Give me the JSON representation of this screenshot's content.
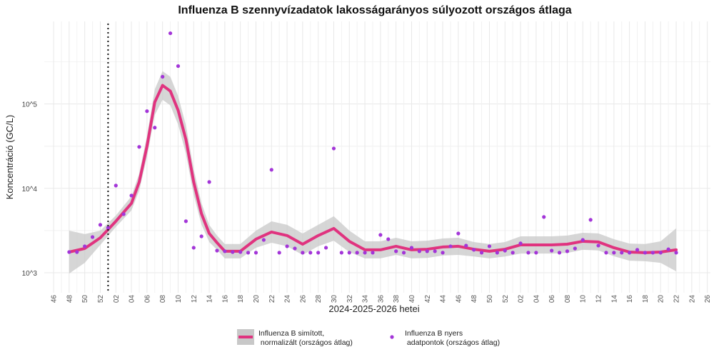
{
  "chart_data": {
    "type": "line",
    "title": "Influenza B szennyvízadatok lakosságarányos súlyozott országos átlaga",
    "x_label": "2024-2025-2026 hetei",
    "y_label": "Koncentráció (GC/L)",
    "log_y": true,
    "grid": true,
    "legend": "bottom",
    "xlim": [
      -1.2,
      84.4
    ],
    "ylim": [
      580,
      950000
    ],
    "yticks": [
      {
        "value": 1000,
        "label": "10^3"
      },
      {
        "value": 10000,
        "label": "10^4"
      },
      {
        "value": 100000,
        "label": "10^5"
      }
    ],
    "xticks": [
      {
        "value": 0,
        "label": "46"
      },
      {
        "value": 2,
        "label": "48"
      },
      {
        "value": 4,
        "label": "50"
      },
      {
        "value": 6,
        "label": "52"
      },
      {
        "value": 8,
        "label": "02"
      },
      {
        "value": 10,
        "label": "04"
      },
      {
        "value": 12,
        "label": "06"
      },
      {
        "value": 14,
        "label": "08"
      },
      {
        "value": 16,
        "label": "10"
      },
      {
        "value": 18,
        "label": "12"
      },
      {
        "value": 20,
        "label": "14"
      },
      {
        "value": 22,
        "label": "16"
      },
      {
        "value": 24,
        "label": "18"
      },
      {
        "value": 26,
        "label": "20"
      },
      {
        "value": 28,
        "label": "22"
      },
      {
        "value": 30,
        "label": "24"
      },
      {
        "value": 32,
        "label": "26"
      },
      {
        "value": 34,
        "label": "28"
      },
      {
        "value": 36,
        "label": "30"
      },
      {
        "value": 38,
        "label": "32"
      },
      {
        "value": 40,
        "label": "34"
      },
      {
        "value": 42,
        "label": "36"
      },
      {
        "value": 44,
        "label": "38"
      },
      {
        "value": 46,
        "label": "40"
      },
      {
        "value": 48,
        "label": "42"
      },
      {
        "value": 50,
        "label": "44"
      },
      {
        "value": 52,
        "label": "46"
      },
      {
        "value": 54,
        "label": "48"
      },
      {
        "value": 56,
        "label": "50"
      },
      {
        "value": 58,
        "label": "52"
      },
      {
        "value": 60,
        "label": "02"
      },
      {
        "value": 62,
        "label": "04"
      },
      {
        "value": 64,
        "label": "06"
      },
      {
        "value": 66,
        "label": "08"
      },
      {
        "value": 68,
        "label": "10"
      },
      {
        "value": 70,
        "label": "12"
      },
      {
        "value": 72,
        "label": "14"
      },
      {
        "value": 74,
        "label": "16"
      },
      {
        "value": 76,
        "label": "18"
      },
      {
        "value": 78,
        "label": "20"
      },
      {
        "value": 80,
        "label": "22"
      },
      {
        "value": 82,
        "label": "24"
      },
      {
        "value": 84,
        "label": "26"
      }
    ],
    "vline_x": 7,
    "series": [
      {
        "name": "Influenza B simított,\n normalizált (országos átlag)",
        "type": "line",
        "color": "#e0337f",
        "band_color": "#c8c8c8",
        "x": [
          2,
          4,
          6,
          8,
          10,
          11,
          12,
          13,
          14,
          15,
          16,
          17,
          18,
          19,
          20,
          21,
          22,
          24,
          26,
          28,
          30,
          32,
          34,
          36,
          38,
          40,
          42,
          44,
          46,
          48,
          50,
          52,
          54,
          56,
          58,
          60,
          62,
          64,
          66,
          68,
          70,
          72,
          74,
          76,
          78,
          80
        ],
        "values": [
          1760,
          1940,
          2600,
          4080,
          6640,
          11900,
          31600,
          105000,
          166000,
          142000,
          84000,
          38000,
          11900,
          5000,
          2920,
          2270,
          1800,
          1800,
          2500,
          3040,
          2760,
          2180,
          2760,
          3350,
          2360,
          1870,
          1870,
          2060,
          1870,
          1900,
          2020,
          2060,
          1900,
          1800,
          1900,
          2140,
          2140,
          2140,
          2180,
          2360,
          2320,
          1980,
          1760,
          1730,
          1760,
          1870
        ],
        "upper": [
          3160,
          2870,
          3160,
          4770,
          8070,
          15000,
          42300,
          149000,
          245000,
          210000,
          124000,
          56100,
          16900,
          6700,
          3690,
          2760,
          2190,
          2190,
          3160,
          4070,
          3700,
          2920,
          3700,
          4670,
          3160,
          2360,
          2360,
          2600,
          2360,
          2400,
          2550,
          2600,
          2310,
          2190,
          2310,
          2700,
          2700,
          2700,
          2760,
          2980,
          2930,
          2500,
          2220,
          2190,
          2360,
          3360
        ],
        "lower": [
          980,
          1310,
          2140,
          3490,
          5470,
          9410,
          23600,
          73900,
          112000,
          96100,
          56900,
          25700,
          8380,
          3730,
          2310,
          1870,
          1480,
          1480,
          1980,
          2270,
          2060,
          1630,
          2060,
          2400,
          1760,
          1480,
          1480,
          1630,
          1480,
          1500,
          1600,
          1630,
          1560,
          1480,
          1560,
          1690,
          1690,
          1690,
          1720,
          1870,
          1840,
          1570,
          1390,
          1370,
          1310,
          1040
        ]
      },
      {
        "name": "Influenza B nyers\n adatpontok (országos átlag)",
        "type": "scatter",
        "color": "#a335d8",
        "x": [
          2,
          3,
          4,
          5,
          6,
          7,
          8,
          9,
          10,
          11,
          12,
          13,
          14,
          15,
          16,
          17,
          18,
          19,
          20,
          21,
          22,
          23,
          24,
          25,
          26,
          27,
          28,
          29,
          30,
          31,
          32,
          33,
          34,
          35,
          36,
          37,
          38,
          39,
          40,
          41,
          42,
          43,
          44,
          45,
          46,
          47,
          48,
          49,
          50,
          51,
          52,
          53,
          54,
          55,
          56,
          57,
          58,
          59,
          60,
          61,
          62,
          63,
          64,
          65,
          66,
          67,
          68,
          69,
          70,
          71,
          72,
          73,
          74,
          75,
          76,
          77,
          78,
          79,
          80
        ],
        "values": [
          1760,
          1760,
          2060,
          2650,
          3700,
          3420,
          10800,
          4950,
          8220,
          31000,
          82100,
          52400,
          210000,
          688000,
          281000,
          4080,
          1980,
          2700,
          11900,
          1830,
          1800,
          1760,
          1760,
          1730,
          1730,
          2450,
          16600,
          1730,
          2060,
          1940,
          1730,
          1730,
          1730,
          1980,
          29700,
          1730,
          1730,
          1730,
          1730,
          1730,
          2810,
          2500,
          1800,
          1730,
          1980,
          1800,
          1800,
          1800,
          1730,
          2060,
          2920,
          2100,
          1870,
          1730,
          2060,
          1730,
          1830,
          1730,
          2230,
          1730,
          1730,
          4580,
          1830,
          1730,
          1800,
          1940,
          2450,
          4240,
          2100,
          1730,
          1730,
          1730,
          1730,
          1870,
          1730,
          1730,
          1730,
          1900,
          1730
        ]
      }
    ]
  }
}
